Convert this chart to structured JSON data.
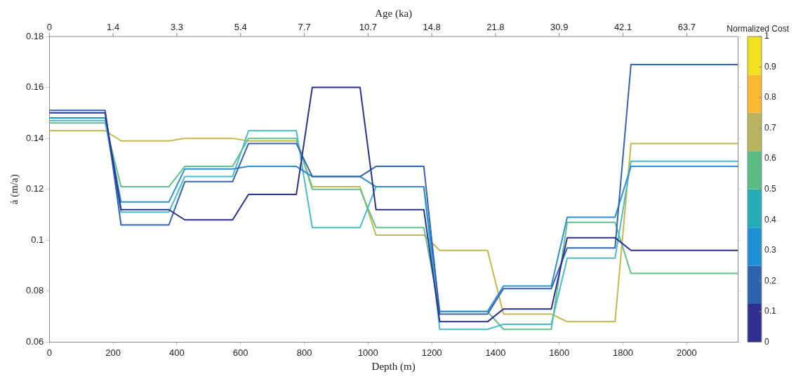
{
  "chart_data": {
    "type": "line",
    "xlabel": "Depth (m)",
    "ylabel": "ȧ (m/a)",
    "x2label": "Age (ka)",
    "clabel": "Normalized Cost",
    "x": [
      0,
      175,
      225,
      375,
      425,
      575,
      625,
      775,
      825,
      975,
      1025,
      1175,
      1225,
      1375,
      1425,
      1575,
      1625,
      1775,
      1825,
      2160
    ],
    "series": [
      {
        "color": "#2b2f8e",
        "values": [
          0.15,
          0.15,
          0.112,
          0.112,
          0.108,
          0.108,
          0.118,
          0.118,
          0.16,
          0.16,
          0.112,
          0.112,
          0.068,
          0.068,
          0.073,
          0.073,
          0.101,
          0.101,
          0.096,
          0.096
        ]
      },
      {
        "color": "#3563b3",
        "values": [
          0.151,
          0.151,
          0.106,
          0.106,
          0.123,
          0.123,
          0.138,
          0.138,
          0.125,
          0.125,
          0.129,
          0.129,
          0.071,
          0.071,
          0.081,
          0.081,
          0.097,
          0.097,
          0.169,
          0.169
        ]
      },
      {
        "color": "#2b8fd6",
        "values": [
          0.148,
          0.148,
          0.115,
          0.115,
          0.128,
          0.128,
          0.129,
          0.129,
          0.125,
          0.125,
          0.121,
          0.121,
          0.072,
          0.072,
          0.082,
          0.082,
          0.109,
          0.109,
          0.129,
          0.129
        ]
      },
      {
        "color": "#48bccb",
        "values": [
          0.147,
          0.147,
          0.111,
          0.111,
          0.125,
          0.125,
          0.143,
          0.143,
          0.105,
          0.105,
          0.121,
          0.121,
          0.065,
          0.065,
          0.067,
          0.067,
          0.093,
          0.093,
          0.131,
          0.131
        ]
      },
      {
        "color": "#62c08a",
        "values": [
          0.146,
          0.146,
          0.121,
          0.121,
          0.129,
          0.129,
          0.14,
          0.14,
          0.12,
          0.12,
          0.105,
          0.105,
          0.072,
          0.072,
          0.065,
          0.065,
          0.107,
          0.107,
          0.087,
          0.087
        ]
      },
      {
        "color": "#c3b84c",
        "values": [
          0.143,
          0.143,
          0.139,
          0.139,
          0.14,
          0.14,
          0.139,
          0.139,
          0.121,
          0.121,
          0.102,
          0.102,
          0.096,
          0.096,
          0.071,
          0.071,
          0.068,
          0.068,
          0.138,
          0.138
        ]
      }
    ],
    "xlim": [
      0,
      2160
    ],
    "xticks": [
      0,
      200,
      400,
      600,
      800,
      1000,
      1200,
      1400,
      1600,
      1800,
      2000
    ],
    "annotations": [
      "0",
      "1.4",
      "3.3",
      "5.4",
      "7.7",
      "10.7",
      "14.8",
      "21.8",
      "30.9",
      "42.1",
      "63.7"
    ],
    "ylim": [
      0.06,
      0.18
    ],
    "yticks": [
      0.06,
      {
        "value": 0.08,
        "label": "0.08"
      },
      {
        "value": 0.1,
        "label": "0.1"
      },
      0.12,
      0.14,
      0.16,
      0.18
    ],
    "clim": [
      0,
      1
    ],
    "cticks": [
      0,
      0.1,
      0.2,
      0.3,
      0.4,
      0.5,
      0.6,
      0.7,
      0.8,
      0.9,
      1
    ],
    "grid": false,
    "legend": false,
    "marker": "none",
    "line_style": "solid"
  }
}
